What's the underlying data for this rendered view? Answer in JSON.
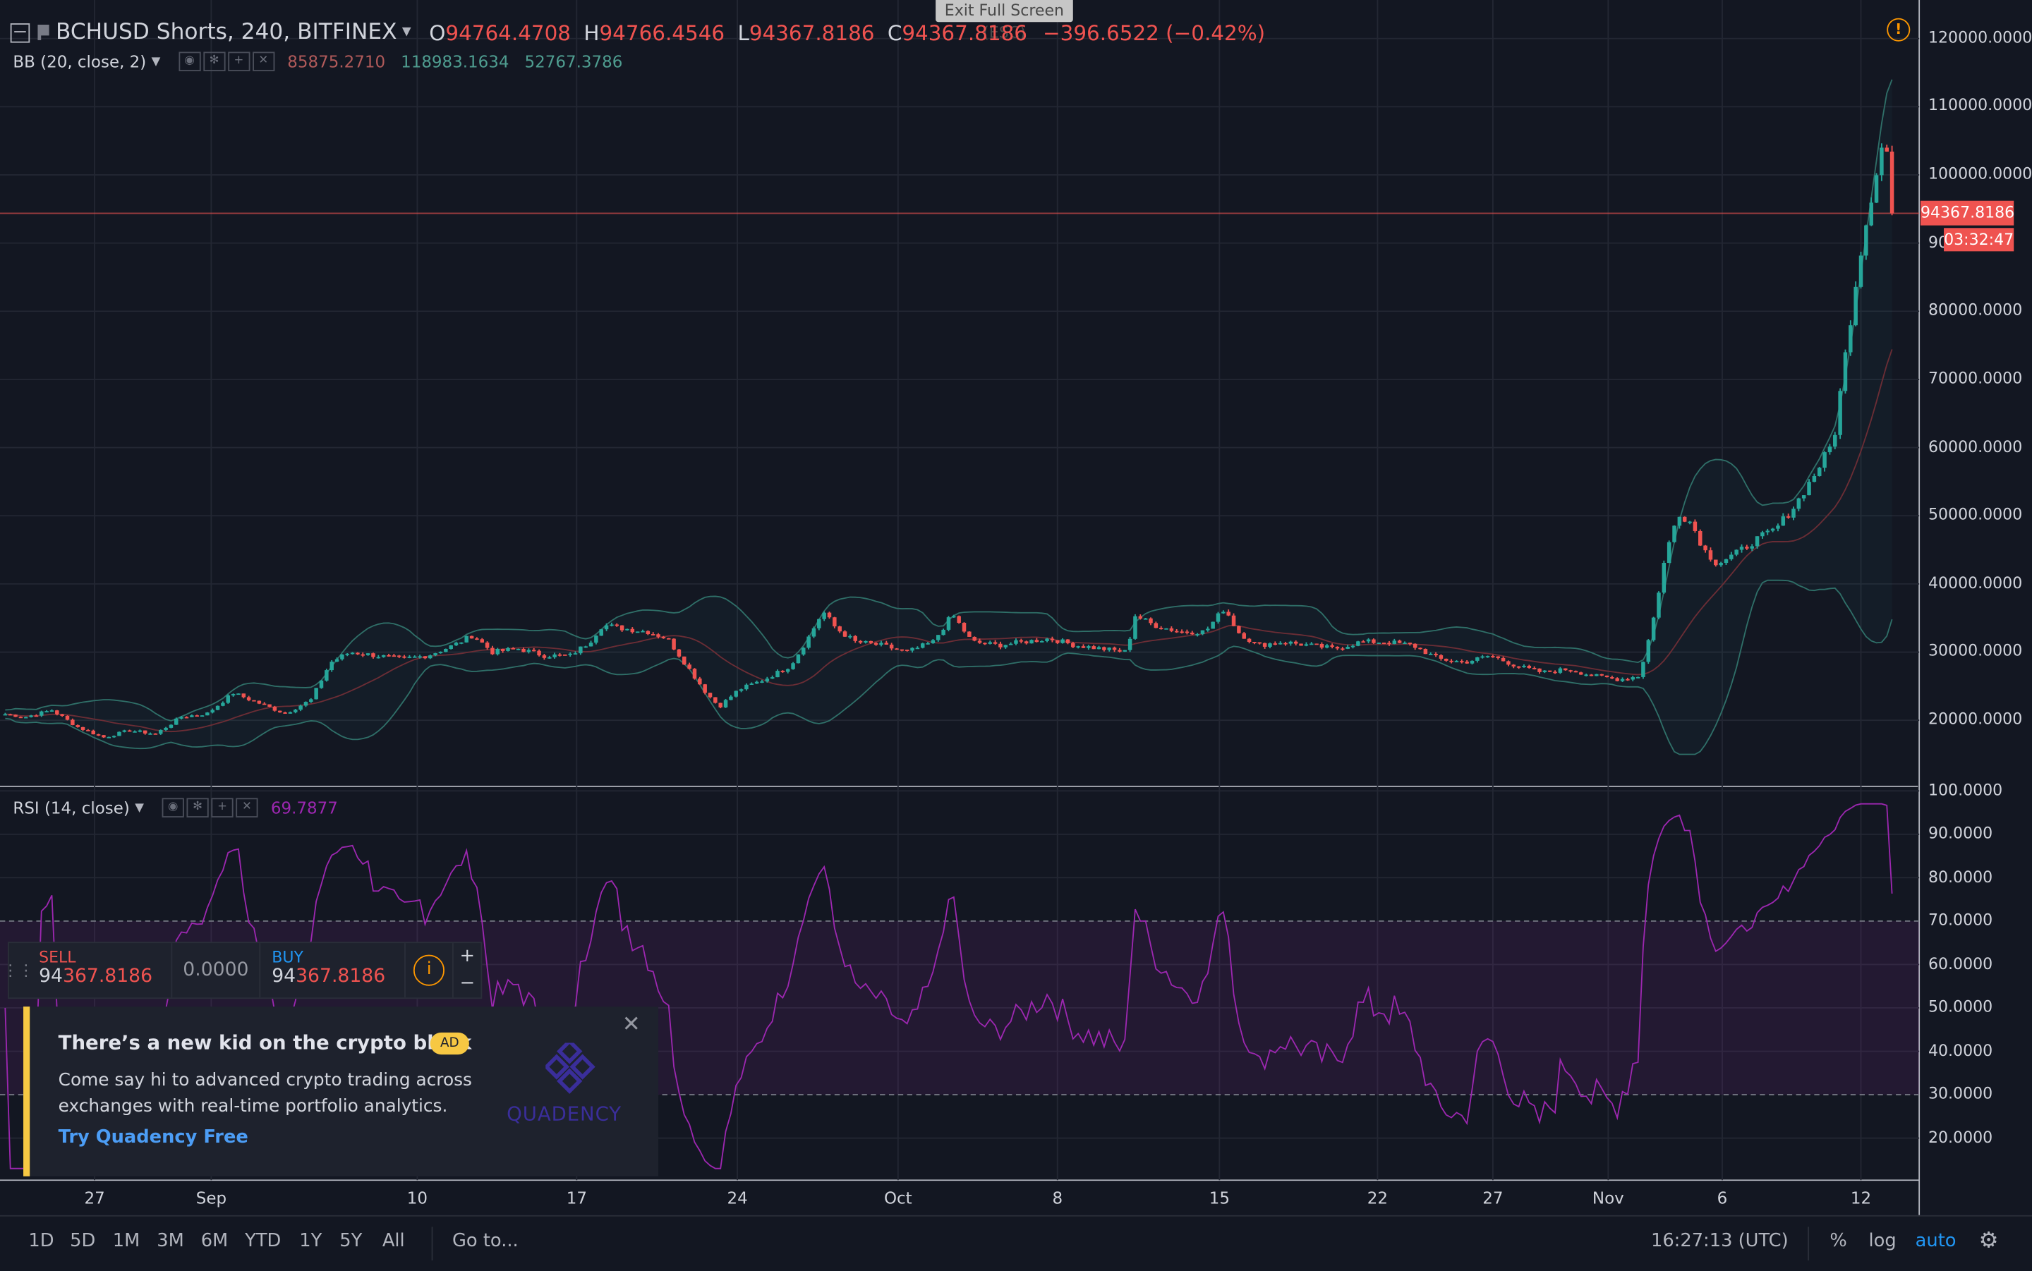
{
  "window": {
    "exit_fullscreen": "Exit Full Screen (ESC)"
  },
  "header": {
    "symbol": "BCHUSD Shorts, 240, BITFINEX",
    "open_key": "O",
    "open": "94764.4708",
    "high_key": "H",
    "high": "94766.4546",
    "low_key": "L",
    "low": "94367.8186",
    "close_key": "C",
    "close": "94367.8186",
    "change": "−396.6522 (−0.42%)"
  },
  "bb": {
    "name": "BB (20, close, 2)",
    "v1": "85875.2710",
    "v2": "118983.1634",
    "v3": "52767.3786"
  },
  "rsi": {
    "name": "RSI (14, close)",
    "value": "69.7877"
  },
  "price_axis": [
    {
      "label": "120000.0000",
      "v": 120000
    },
    {
      "label": "110000.0000",
      "v": 110000
    },
    {
      "label": "100000.0000",
      "v": 100000
    },
    {
      "label": "90",
      "v": 90000
    },
    {
      "label": "80000.0000",
      "v": 80000
    },
    {
      "label": "70000.0000",
      "v": 70000
    },
    {
      "label": "60000.0000",
      "v": 60000
    },
    {
      "label": "50000.0000",
      "v": 50000
    },
    {
      "label": "40000.0000",
      "v": 40000
    },
    {
      "label": "30000.0000",
      "v": 30000
    },
    {
      "label": "20000.0000",
      "v": 20000
    }
  ],
  "rsi_axis": [
    {
      "label": "100.0000",
      "v": 100
    },
    {
      "label": "90.0000",
      "v": 90
    },
    {
      "label": "80.0000",
      "v": 80
    },
    {
      "label": "70.0000",
      "v": 70
    },
    {
      "label": "60.0000",
      "v": 60
    },
    {
      "label": "50.0000",
      "v": 50
    },
    {
      "label": "40.0000",
      "v": 40
    },
    {
      "label": "30.0000",
      "v": 30
    },
    {
      "label": "20.0000",
      "v": 20
    }
  ],
  "price_tag": "94367.8186",
  "countdown": "03:32:47",
  "time_axis": [
    "27",
    "Sep",
    "10",
    "17",
    "24",
    "Oct",
    "8",
    "15",
    "22",
    "27",
    "Nov",
    "6",
    "12"
  ],
  "trade": {
    "sell_label": "SELL",
    "sell_pre": "94",
    "sell_post": "367.8186",
    "qty": "0.0000",
    "buy_label": "BUY",
    "buy_pre": "94",
    "buy_post": "367.8186",
    "plus": "+",
    "minus": "−"
  },
  "ad": {
    "title": "There’s a new kid on the crypto block",
    "badge": "AD",
    "body": "Come say hi to advanced crypto trading across exchanges with real-time portfolio analytics.",
    "link": "Try Quadency Free",
    "logo": "QUADENCY"
  },
  "bottom": {
    "ranges": [
      "1D",
      "5D",
      "1M",
      "3M",
      "6M",
      "YTD",
      "1Y",
      "5Y",
      "All"
    ],
    "goto": "Go to...",
    "clock": "16:27:13 (UTC)",
    "percent": "%",
    "log": "log",
    "auto": "auto"
  },
  "colors": {
    "bg": "#131722",
    "up": "#26a69a",
    "down": "#ef5350",
    "rsi": "#9c27b0",
    "accent": "#2196f3"
  },
  "chart_data": {
    "type": "candlestick",
    "price_range": [
      15000,
      122000
    ],
    "rsi_range": [
      12,
      100
    ],
    "candles_close_path": [
      [
        0,
        21000
      ],
      [
        20,
        20500
      ],
      [
        40,
        21500
      ],
      [
        60,
        19000
      ],
      [
        80,
        17500
      ],
      [
        100,
        18500
      ],
      [
        120,
        18000
      ],
      [
        140,
        20500
      ],
      [
        160,
        21000
      ],
      [
        180,
        24000
      ],
      [
        200,
        22500
      ],
      [
        220,
        21000
      ],
      [
        240,
        23000
      ],
      [
        255,
        28500
      ],
      [
        270,
        30000
      ],
      [
        290,
        29500
      ],
      [
        310,
        29000
      ],
      [
        330,
        29500
      ],
      [
        350,
        31000
      ],
      [
        365,
        32500
      ],
      [
        380,
        30000
      ],
      [
        400,
        30500
      ],
      [
        420,
        29500
      ],
      [
        440,
        29500
      ],
      [
        455,
        31500
      ],
      [
        465,
        34000
      ],
      [
        480,
        33500
      ],
      [
        500,
        33000
      ],
      [
        515,
        32000
      ],
      [
        530,
        28000
      ],
      [
        545,
        24000
      ],
      [
        555,
        22000
      ],
      [
        570,
        24500
      ],
      [
        590,
        26000
      ],
      [
        610,
        28000
      ],
      [
        625,
        32500
      ],
      [
        635,
        36000
      ],
      [
        645,
        33500
      ],
      [
        660,
        31500
      ],
      [
        680,
        31000
      ],
      [
        700,
        30000
      ],
      [
        720,
        31500
      ],
      [
        735,
        35500
      ],
      [
        750,
        31500
      ],
      [
        770,
        31000
      ],
      [
        790,
        31500
      ],
      [
        810,
        32000
      ],
      [
        830,
        31000
      ],
      [
        850,
        30500
      ],
      [
        870,
        30000
      ],
      [
        875,
        35500
      ],
      [
        890,
        34000
      ],
      [
        910,
        33000
      ],
      [
        930,
        33000
      ],
      [
        945,
        36500
      ],
      [
        955,
        33000
      ],
      [
        970,
        31000
      ],
      [
        990,
        31500
      ],
      [
        1010,
        31000
      ],
      [
        1030,
        30500
      ],
      [
        1050,
        31500
      ],
      [
        1070,
        31500
      ],
      [
        1090,
        31000
      ],
      [
        1110,
        29000
      ],
      [
        1130,
        28500
      ],
      [
        1150,
        29500
      ],
      [
        1170,
        28000
      ],
      [
        1190,
        27000
      ],
      [
        1210,
        27500
      ],
      [
        1230,
        26500
      ],
      [
        1250,
        26000
      ],
      [
        1265,
        26500
      ],
      [
        1275,
        34000
      ],
      [
        1285,
        44000
      ],
      [
        1295,
        50500
      ],
      [
        1305,
        49000
      ],
      [
        1315,
        45000
      ],
      [
        1325,
        43000
      ],
      [
        1340,
        44500
      ],
      [
        1355,
        46500
      ],
      [
        1370,
        48000
      ],
      [
        1385,
        51500
      ],
      [
        1400,
        56000
      ],
      [
        1415,
        61000
      ],
      [
        1425,
        75000
      ],
      [
        1435,
        88000
      ],
      [
        1445,
        98000
      ],
      [
        1452,
        104000
      ],
      [
        1458,
        103000
      ],
      [
        1462,
        94367
      ]
    ]
  }
}
